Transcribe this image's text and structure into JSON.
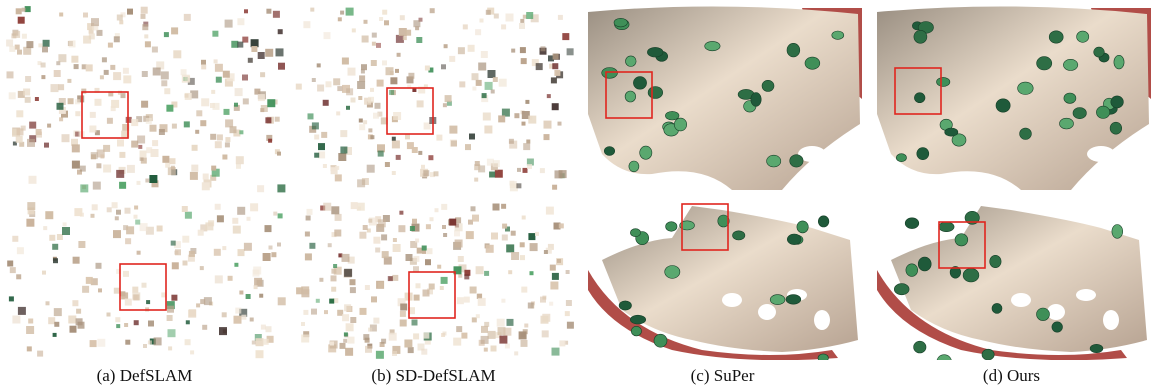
{
  "figure": {
    "panels": [
      {
        "id": "a",
        "caption": "(a) DefSLAM",
        "style": "sparse-points"
      },
      {
        "id": "b",
        "caption": "(b) SD-DefSLAM",
        "style": "sparse-points"
      },
      {
        "id": "c",
        "caption": "(c) SuPer",
        "style": "dense-surface"
      },
      {
        "id": "d",
        "caption": "(d) Ours",
        "style": "dense-surface"
      }
    ],
    "colors": {
      "highlight_box": "#e0261f",
      "tissue_light": "#eadccb",
      "tissue_shadow": "#b7a392",
      "tissue_red": "#a83a34",
      "marker_green": "#3f8f58"
    }
  }
}
